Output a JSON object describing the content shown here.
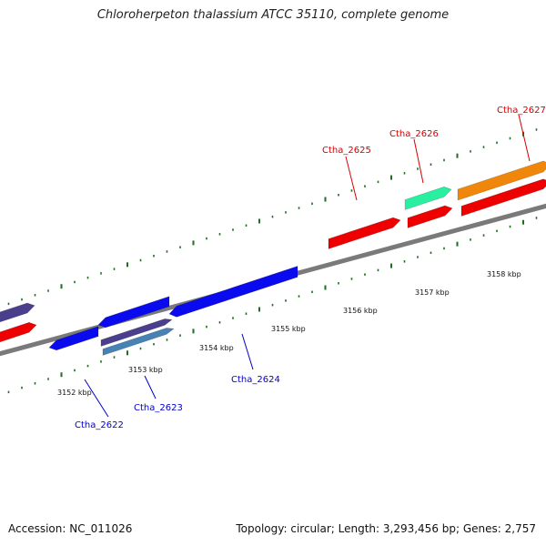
{
  "title": "Chloroherpeton thalassium ATCC 35110, complete genome",
  "footer": {
    "accession": "Accession: NC_011026",
    "summary": "Topology: circular; Length: 3,293,456 bp; Genes: 2,757"
  },
  "colors": {
    "backbone": "#7a7a7a",
    "tick": "#1e6e1e",
    "forward_label": "#d40000",
    "reverse_label": "#0000c8",
    "red": "#ee0000",
    "blue": "#0a0aee",
    "navy": "#4a3f8c",
    "steel": "#4682b4",
    "teal": "#28f0a0",
    "orange": "#f0860a"
  },
  "scale": {
    "labels": [
      "3152 kbp",
      "3153 kbp",
      "3154 kbp",
      "3155 kbp",
      "3156 kbp",
      "3157 kbp",
      "3158 kbp"
    ]
  },
  "genes": [
    {
      "label": "Ctha_2622",
      "strand": "reverse",
      "color": "blue"
    },
    {
      "label": "Ctha_2623",
      "strand": "reverse",
      "color": "navy"
    },
    {
      "label": "Ctha_2624",
      "strand": "reverse",
      "color": "blue"
    },
    {
      "label": "Ctha_2625",
      "strand": "forward",
      "color": "red"
    },
    {
      "label": "Ctha_2626",
      "strand": "forward",
      "color": "teal"
    },
    {
      "label": "Ctha_2627",
      "strand": "forward",
      "color": "orange"
    }
  ]
}
